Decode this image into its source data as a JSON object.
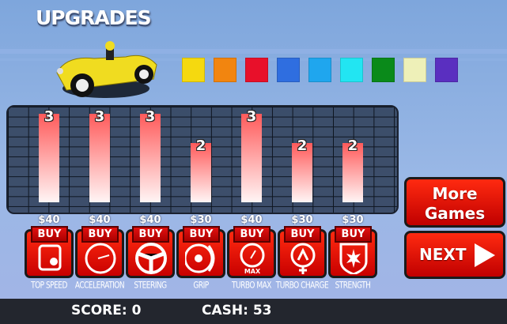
{
  "title": "UPGRADES",
  "colors": {
    "swatches": [
      "#f5d90f",
      "#f2850f",
      "#e8102a",
      "#2f6ee0",
      "#1fa6ee",
      "#22e5f2",
      "#0a8a1a",
      "#eef0b8",
      "#5a2fc0"
    ],
    "button_red": "#e01010"
  },
  "chart_data": {
    "type": "bar",
    "categories": [
      "TOP SPEED",
      "ACCELERATION",
      "STEERING",
      "GRIP",
      "TURBO MAX",
      "TURBO CHARGE",
      "STRENGTH"
    ],
    "values": [
      3,
      3,
      3,
      2,
      3,
      2,
      2
    ]
  },
  "upgrades": [
    {
      "label": "TOP SPEED",
      "level": "3",
      "price": "$40",
      "buy": "BUY",
      "icon": "engine-icon"
    },
    {
      "label": "ACCELERATION",
      "level": "3",
      "price": "$40",
      "buy": "BUY",
      "icon": "speedometer-icon"
    },
    {
      "label": "STEERING",
      "level": "3",
      "price": "$40",
      "buy": "BUY",
      "icon": "steering-wheel-icon"
    },
    {
      "label": "GRIP",
      "level": "2",
      "price": "$30",
      "buy": "BUY",
      "icon": "tire-icon"
    },
    {
      "label": "TURBO MAX",
      "level": "3",
      "price": "$40",
      "buy": "BUY",
      "icon": "turbo-max-icon"
    },
    {
      "label": "TURBO CHARGE",
      "level": "2",
      "price": "$30",
      "buy": "BUY",
      "icon": "turbo-charge-icon"
    },
    {
      "label": "STRENGTH",
      "level": "2",
      "price": "$30",
      "buy": "BUY",
      "icon": "shield-icon"
    }
  ],
  "buttons": {
    "more_games": "More Games",
    "next": "NEXT"
  },
  "status": {
    "score": "SCORE: 0",
    "cash": "CASH: 53"
  }
}
